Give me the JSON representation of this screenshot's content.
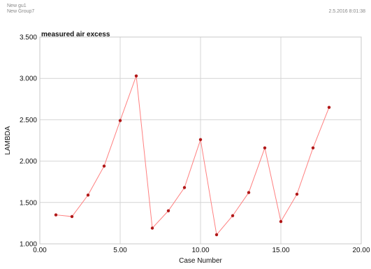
{
  "header": {
    "line1": "New gu1",
    "line2": "New Group7",
    "timestamp": "2.5.2016   8:01:38"
  },
  "chart_data": {
    "type": "line",
    "title": "measured air excess",
    "xlabel": "Case Number",
    "ylabel": "LAMBDA",
    "xlim": [
      0,
      20
    ],
    "ylim": [
      1.0,
      3.5
    ],
    "x_ticks": [
      0,
      5,
      10,
      15,
      20
    ],
    "x_tick_labels": [
      "0.00",
      "5.00",
      "10.00",
      "15.00",
      "20.00"
    ],
    "y_ticks": [
      1.0,
      1.5,
      2.0,
      2.5,
      3.0,
      3.5
    ],
    "y_tick_labels": [
      "1.000",
      "1.500",
      "2.000",
      "2.500",
      "3.000",
      "3.500"
    ],
    "grid": true,
    "line_color": "#ff8080",
    "marker_color": "#b01818",
    "series": [
      {
        "x": [
          1,
          2,
          3,
          4,
          5,
          6,
          7,
          8,
          9,
          10,
          11,
          12,
          13,
          14,
          15,
          16,
          17,
          18
        ],
        "y": [
          1.35,
          1.33,
          1.59,
          1.94,
          2.49,
          3.03,
          1.19,
          1.4,
          1.68,
          2.26,
          1.11,
          1.34,
          1.62,
          2.16,
          1.27,
          1.6,
          2.16,
          2.65
        ]
      }
    ]
  }
}
